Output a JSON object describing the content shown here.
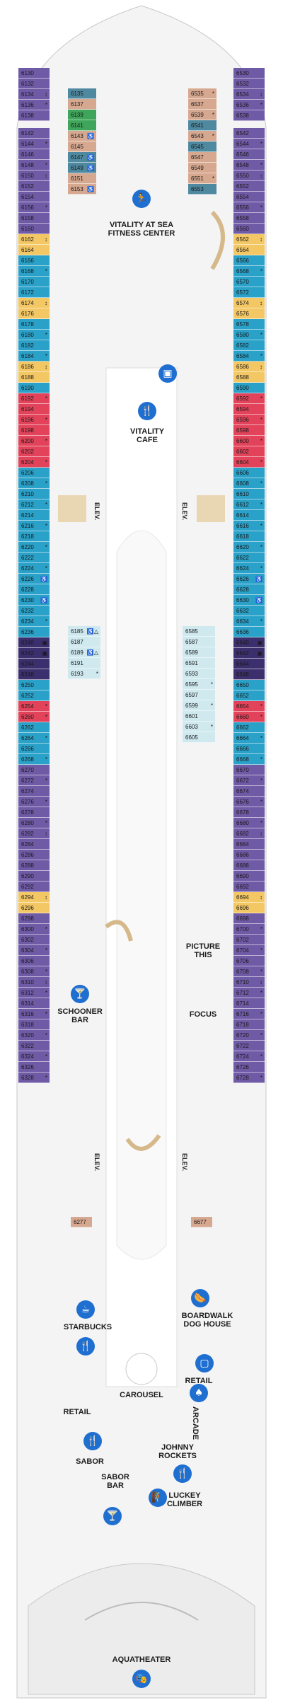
{
  "colors": {
    "purple": "#6f5aa6",
    "blue": "#2aa1c8",
    "yellow": "#f3c764",
    "red": "#e2435a",
    "light_blue": "#cfe9ef",
    "tan": "#d7a890",
    "green": "#3fa55a",
    "dark_purple": "#3c2f6e",
    "teal": "#4f89a0",
    "icon_blue": "#1f6fd1"
  },
  "venues": {
    "fitness": "VITALITY AT SEA\nFITNESS CENTER",
    "cafe": "VITALITY\nCAFE",
    "schooner": "SCHOONER\nBAR",
    "focus": "FOCUS",
    "picture": "PICTURE\nTHIS",
    "boardwalk": "BOARDWALK\nDOG HOUSE",
    "starbucks": "STARBUCKS",
    "carousel": "CAROUSEL",
    "retail_left": "RETAIL",
    "retail_right": "RETAIL",
    "arcade": "ARCADE",
    "sabor": "SABOR",
    "sabor_bar": "SABOR\nBAR",
    "johnny": "JOHNNY\nROCKETS",
    "luckey": "LUCKEY\nCLIMBER",
    "aquatheater": "AQUATHEATER"
  },
  "elevators": [
    "ELEV.",
    "ELEV.",
    "ELEV.",
    "ELEV."
  ],
  "icons": [
    "fitness-icon",
    "cafe-icon",
    "bar-icon",
    "dining-icon",
    "starbucks-icon",
    "boardwalk-icon",
    "arcade-icon",
    "dining-icon-2",
    "climber-icon",
    "aquatheater-icon",
    "cocktail-icon",
    "restroom-icon"
  ],
  "cabins_left_outer": [
    [
      "6130",
      "purple",
      ""
    ],
    [
      "6132",
      "purple",
      ""
    ],
    [
      "6134",
      "purple",
      "↕"
    ],
    [
      "6136",
      "purple",
      "*"
    ],
    [
      "6138",
      "purple",
      ""
    ],
    [
      "6142",
      "purple",
      ""
    ],
    [
      "6144",
      "purple",
      "*"
    ],
    [
      "6146",
      "purple",
      ""
    ],
    [
      "6148",
      "purple",
      "*"
    ],
    [
      "6150",
      "purple",
      "↕"
    ],
    [
      "6152",
      "purple",
      ""
    ],
    [
      "6154",
      "purple",
      ""
    ],
    [
      "6156",
      "purple",
      "*"
    ],
    [
      "6158",
      "purple",
      ""
    ],
    [
      "6160",
      "purple",
      ""
    ],
    [
      "6162",
      "yellow",
      "↕"
    ],
    [
      "6164",
      "yellow",
      ""
    ],
    [
      "6166",
      "blue",
      ""
    ],
    [
      "6168",
      "blue",
      "*"
    ],
    [
      "6170",
      "blue",
      ""
    ],
    [
      "6172",
      "blue",
      ""
    ],
    [
      "6174",
      "yellow",
      "↕"
    ],
    [
      "6176",
      "yellow",
      ""
    ],
    [
      "6178",
      "blue",
      ""
    ],
    [
      "6180",
      "blue",
      "*"
    ],
    [
      "6182",
      "blue",
      ""
    ],
    [
      "6184",
      "blue",
      "*"
    ],
    [
      "6186",
      "yellow",
      "↕"
    ],
    [
      "6188",
      "yellow",
      ""
    ],
    [
      "6190",
      "blue",
      ""
    ],
    [
      "6192",
      "red",
      "*"
    ],
    [
      "6194",
      "red",
      ""
    ],
    [
      "6196",
      "red",
      "*"
    ],
    [
      "6198",
      "red",
      ""
    ],
    [
      "6200",
      "red",
      "*"
    ],
    [
      "6202",
      "red",
      ""
    ],
    [
      "6204",
      "red",
      "*"
    ],
    [
      "6206",
      "blue",
      ""
    ],
    [
      "6208",
      "blue",
      "*"
    ],
    [
      "6210",
      "blue",
      ""
    ],
    [
      "6212",
      "blue",
      "*"
    ],
    [
      "6214",
      "blue",
      ""
    ],
    [
      "6216",
      "blue",
      "*"
    ],
    [
      "6218",
      "blue",
      ""
    ],
    [
      "6220",
      "blue",
      "*"
    ],
    [
      "6222",
      "blue",
      ""
    ],
    [
      "6224",
      "blue",
      "*"
    ],
    [
      "6226",
      "blue",
      "♿"
    ],
    [
      "6228",
      "blue",
      ""
    ],
    [
      "6230",
      "blue",
      "♿"
    ],
    [
      "6232",
      "blue",
      ""
    ],
    [
      "6234",
      "blue",
      "*"
    ],
    [
      "6236",
      "blue",
      ""
    ],
    [
      "6240",
      "dark_purple",
      "▣"
    ],
    [
      "6242",
      "dark_purple",
      "▣"
    ],
    [
      "6244",
      "dark_purple",
      ""
    ],
    [
      "6248",
      "dark_purple",
      ""
    ],
    [
      "6250",
      "blue",
      ""
    ],
    [
      "6252",
      "blue",
      ""
    ],
    [
      "6254",
      "red",
      "*"
    ],
    [
      "6260",
      "red",
      "*"
    ],
    [
      "6262",
      "blue",
      ""
    ],
    [
      "6264",
      "blue",
      "*"
    ],
    [
      "6266",
      "blue",
      ""
    ],
    [
      "6268",
      "blue",
      "*"
    ],
    [
      "6270",
      "purple",
      ""
    ],
    [
      "6272",
      "purple",
      "*"
    ],
    [
      "6274",
      "purple",
      ""
    ],
    [
      "6276",
      "purple",
      "*"
    ],
    [
      "6278",
      "purple",
      ""
    ],
    [
      "6280",
      "purple",
      "*"
    ],
    [
      "6282",
      "purple",
      "↕"
    ],
    [
      "6284",
      "purple",
      ""
    ],
    [
      "6286",
      "purple",
      ""
    ],
    [
      "6288",
      "purple",
      ""
    ],
    [
      "6290",
      "purple",
      ""
    ],
    [
      "6292",
      "purple",
      ""
    ],
    [
      "6294",
      "yellow",
      "↕"
    ],
    [
      "6296",
      "yellow",
      ""
    ],
    [
      "6298",
      "purple",
      ""
    ],
    [
      "6300",
      "purple",
      "*"
    ],
    [
      "6302",
      "purple",
      ""
    ],
    [
      "6304",
      "purple",
      "*"
    ],
    [
      "6306",
      "purple",
      ""
    ],
    [
      "6308",
      "purple",
      "*"
    ],
    [
      "6310",
      "purple",
      "↕"
    ],
    [
      "6312",
      "purple",
      "*"
    ],
    [
      "6314",
      "purple",
      ""
    ],
    [
      "6316",
      "purple",
      "*"
    ],
    [
      "6318",
      "purple",
      ""
    ],
    [
      "6320",
      "purple",
      "*"
    ],
    [
      "6322",
      "purple",
      ""
    ],
    [
      "6324",
      "purple",
      "*"
    ],
    [
      "6326",
      "purple",
      ""
    ],
    [
      "6328",
      "purple",
      "*"
    ]
  ],
  "cabins_right_outer": [
    [
      "6530",
      "purple",
      ""
    ],
    [
      "6532",
      "purple",
      ""
    ],
    [
      "6534",
      "purple",
      "↕"
    ],
    [
      "6536",
      "purple",
      "*"
    ],
    [
      "6538",
      "purple",
      ""
    ],
    [
      "6542",
      "purple",
      ""
    ],
    [
      "6544",
      "purple",
      "*"
    ],
    [
      "6546",
      "purple",
      ""
    ],
    [
      "6548",
      "purple",
      "*"
    ],
    [
      "6550",
      "purple",
      "↕"
    ],
    [
      "6552",
      "purple",
      ""
    ],
    [
      "6554",
      "purple",
      ""
    ],
    [
      "6556",
      "purple",
      "*"
    ],
    [
      "6558",
      "purple",
      ""
    ],
    [
      "6560",
      "purple",
      ""
    ],
    [
      "6562",
      "yellow",
      "↕"
    ],
    [
      "6564",
      "yellow",
      ""
    ],
    [
      "6566",
      "blue",
      ""
    ],
    [
      "6568",
      "blue",
      "*"
    ],
    [
      "6570",
      "blue",
      ""
    ],
    [
      "6572",
      "blue",
      ""
    ],
    [
      "6574",
      "yellow",
      "↕"
    ],
    [
      "6576",
      "yellow",
      ""
    ],
    [
      "6578",
      "blue",
      ""
    ],
    [
      "6580",
      "blue",
      "*"
    ],
    [
      "6582",
      "blue",
      ""
    ],
    [
      "6584",
      "blue",
      "*"
    ],
    [
      "6586",
      "yellow",
      "↕"
    ],
    [
      "6588",
      "yellow",
      ""
    ],
    [
      "6590",
      "blue",
      ""
    ],
    [
      "6592",
      "red",
      "*"
    ],
    [
      "6594",
      "red",
      ""
    ],
    [
      "6596",
      "red",
      "*"
    ],
    [
      "6598",
      "red",
      ""
    ],
    [
      "6600",
      "red",
      "*"
    ],
    [
      "6602",
      "red",
      ""
    ],
    [
      "6604",
      "red",
      "*"
    ],
    [
      "6606",
      "blue",
      ""
    ],
    [
      "6608",
      "blue",
      "*"
    ],
    [
      "6610",
      "blue",
      ""
    ],
    [
      "6612",
      "blue",
      "*"
    ],
    [
      "6614",
      "blue",
      ""
    ],
    [
      "6616",
      "blue",
      "*"
    ],
    [
      "6618",
      "blue",
      ""
    ],
    [
      "6620",
      "blue",
      "*"
    ],
    [
      "6622",
      "blue",
      ""
    ],
    [
      "6624",
      "blue",
      "*"
    ],
    [
      "6626",
      "blue",
      "♿"
    ],
    [
      "6628",
      "blue",
      ""
    ],
    [
      "6630",
      "blue",
      "♿"
    ],
    [
      "6632",
      "blue",
      ""
    ],
    [
      "6634",
      "blue",
      "*"
    ],
    [
      "6636",
      "blue",
      ""
    ],
    [
      "6640",
      "dark_purple",
      "▣"
    ],
    [
      "6642",
      "dark_purple",
      "▣"
    ],
    [
      "6644",
      "dark_purple",
      ""
    ],
    [
      "6648",
      "dark_purple",
      ""
    ],
    [
      "6650",
      "blue",
      ""
    ],
    [
      "6652",
      "blue",
      ""
    ],
    [
      "6654",
      "red",
      "*"
    ],
    [
      "6660",
      "red",
      "*"
    ],
    [
      "6662",
      "blue",
      ""
    ],
    [
      "6664",
      "blue",
      "*"
    ],
    [
      "6666",
      "blue",
      ""
    ],
    [
      "6668",
      "blue",
      "*"
    ],
    [
      "6670",
      "purple",
      ""
    ],
    [
      "6672",
      "purple",
      "*"
    ],
    [
      "6674",
      "purple",
      ""
    ],
    [
      "6676",
      "purple",
      "*"
    ],
    [
      "6678",
      "purple",
      ""
    ],
    [
      "6680",
      "purple",
      "*"
    ],
    [
      "6682",
      "purple",
      "↕"
    ],
    [
      "6684",
      "purple",
      ""
    ],
    [
      "6686",
      "purple",
      ""
    ],
    [
      "6688",
      "purple",
      ""
    ],
    [
      "6690",
      "purple",
      ""
    ],
    [
      "6692",
      "purple",
      ""
    ],
    [
      "6694",
      "yellow",
      "↕"
    ],
    [
      "6696",
      "yellow",
      ""
    ],
    [
      "6698",
      "purple",
      ""
    ],
    [
      "6700",
      "purple",
      "*"
    ],
    [
      "6702",
      "purple",
      ""
    ],
    [
      "6704",
      "purple",
      "*"
    ],
    [
      "6706",
      "purple",
      ""
    ],
    [
      "6708",
      "purple",
      "*"
    ],
    [
      "6710",
      "purple",
      "↕"
    ],
    [
      "6712",
      "purple",
      "*"
    ],
    [
      "6714",
      "purple",
      ""
    ],
    [
      "6716",
      "purple",
      "*"
    ],
    [
      "6718",
      "purple",
      ""
    ],
    [
      "6720",
      "purple",
      "*"
    ],
    [
      "6722",
      "purple",
      ""
    ],
    [
      "6724",
      "purple",
      "*"
    ],
    [
      "6726",
      "purple",
      ""
    ],
    [
      "6728",
      "purple",
      "*"
    ]
  ],
  "cabins_left_inner": [
    [
      "6135",
      "teal",
      ""
    ],
    [
      "6137",
      "tan",
      ""
    ],
    [
      "6139",
      "green",
      ""
    ],
    [
      "6141",
      "green",
      ""
    ],
    [
      "6143",
      "tan",
      "♿"
    ],
    [
      "6145",
      "tan",
      ""
    ],
    [
      "6147",
      "teal",
      "♿"
    ],
    [
      "6149",
      "teal",
      "♿"
    ],
    [
      "6151",
      "tan",
      ""
    ],
    [
      "6153",
      "tan",
      "♿"
    ]
  ],
  "cabins_right_inner": [
    [
      "6535",
      "tan",
      "*"
    ],
    [
      "6537",
      "tan",
      ""
    ],
    [
      "6539",
      "tan",
      "*"
    ],
    [
      "6541",
      "teal",
      ""
    ],
    [
      "6543",
      "tan",
      "*"
    ],
    [
      "6545",
      "teal",
      ""
    ],
    [
      "6547",
      "tan",
      ""
    ],
    [
      "6549",
      "tan",
      ""
    ],
    [
      "6551",
      "tan",
      "*"
    ],
    [
      "6553",
      "teal",
      ""
    ]
  ],
  "cabins_left_courtyard": [
    [
      "6185",
      "light_blue",
      "♿△"
    ],
    [
      "6187",
      "light_blue",
      ""
    ],
    [
      "6189",
      "light_blue",
      "♿△"
    ],
    [
      "6191",
      "light_blue",
      ""
    ],
    [
      "6193",
      "light_blue",
      "*"
    ]
  ],
  "cabins_right_courtyard": [
    [
      "6585",
      "light_blue",
      ""
    ],
    [
      "6587",
      "light_blue",
      ""
    ],
    [
      "6589",
      "light_blue",
      ""
    ],
    [
      "6591",
      "light_blue",
      ""
    ],
    [
      "6593",
      "light_blue",
      ""
    ],
    [
      "6595",
      "light_blue",
      "*"
    ],
    [
      "6597",
      "light_blue",
      ""
    ],
    [
      "6599",
      "light_blue",
      "*"
    ],
    [
      "6601",
      "light_blue",
      ""
    ],
    [
      "6603",
      "light_blue",
      "*"
    ],
    [
      "6605",
      "light_blue",
      ""
    ]
  ],
  "cabins_small": [
    [
      "6277",
      "tan",
      ""
    ],
    [
      "6677",
      "tan",
      ""
    ]
  ]
}
